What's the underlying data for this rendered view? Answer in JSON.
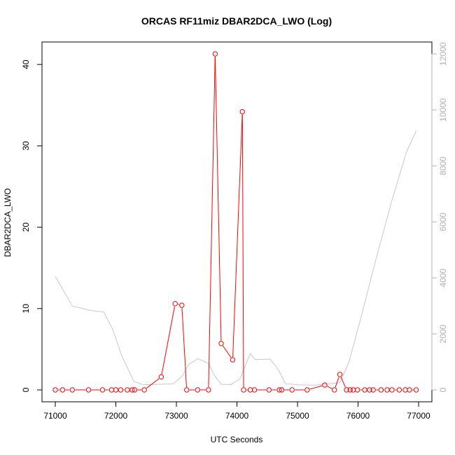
{
  "chart_data": {
    "type": "line",
    "title": "ORCAS RF11miz DBAR2DCA_LWO (Log)",
    "xlabel": "UTC Seconds",
    "ylabel": "DBAR2DCA_LWO",
    "xlim": [
      71000,
      77000
    ],
    "ylim": [
      0,
      41.3
    ],
    "y2lim": [
      0,
      12000
    ],
    "xticks": [
      71000,
      72000,
      73000,
      74000,
      75000,
      76000,
      77000
    ],
    "yticks": [
      0,
      10,
      20,
      30,
      40
    ],
    "y2ticks": [
      0,
      2000,
      4000,
      6000,
      8000,
      10000,
      12000
    ],
    "series": [
      {
        "color": "#ff0000",
        "points": [
          [
            71000,
            0
          ],
          [
            71120,
            0
          ],
          [
            71280,
            0
          ],
          [
            71550,
            0
          ],
          [
            71780,
            0
          ],
          [
            71930,
            0
          ],
          [
            72000,
            0
          ],
          [
            72080,
            0
          ],
          [
            72190,
            0
          ],
          [
            72270,
            0
          ],
          [
            72310,
            0
          ],
          [
            72470,
            0
          ],
          [
            72750,
            1.6
          ],
          [
            72980,
            10.6
          ],
          [
            73090,
            10.4
          ],
          [
            73170,
            0
          ],
          [
            73350,
            0
          ],
          [
            73530,
            0
          ],
          [
            73640,
            41.3
          ],
          [
            73740,
            5.7
          ],
          [
            73930,
            3.7
          ],
          [
            74090,
            34.2
          ],
          [
            74110,
            0
          ],
          [
            74220,
            0
          ],
          [
            74290,
            0
          ],
          [
            74530,
            0
          ],
          [
            74700,
            0
          ],
          [
            74740,
            0
          ],
          [
            74910,
            0
          ],
          [
            75160,
            0
          ],
          [
            75450,
            0.6
          ],
          [
            75610,
            0
          ],
          [
            75700,
            1.9
          ],
          [
            75810,
            0
          ],
          [
            75870,
            0
          ],
          [
            75920,
            0
          ],
          [
            75990,
            0
          ],
          [
            76110,
            0
          ],
          [
            76190,
            0
          ],
          [
            76250,
            0
          ],
          [
            76380,
            0
          ],
          [
            76480,
            0
          ],
          [
            76560,
            0
          ],
          [
            76680,
            0
          ],
          [
            76780,
            0
          ],
          [
            76850,
            0
          ],
          [
            76960,
            0
          ]
        ]
      },
      {
        "color": "#c8c8c8",
        "axis": "right",
        "points": [
          [
            71000,
            4050
          ],
          [
            71280,
            3000
          ],
          [
            71550,
            2850
          ],
          [
            71800,
            2780
          ],
          [
            71950,
            2150
          ],
          [
            72100,
            1200
          ],
          [
            72300,
            300
          ],
          [
            72450,
            180
          ],
          [
            72700,
            200
          ],
          [
            72950,
            220
          ],
          [
            73100,
            500
          ],
          [
            73200,
            900
          ],
          [
            73350,
            1120
          ],
          [
            73530,
            950
          ],
          [
            73640,
            480
          ],
          [
            73740,
            200
          ],
          [
            73900,
            190
          ],
          [
            74050,
            400
          ],
          [
            74220,
            1300
          ],
          [
            74300,
            1080
          ],
          [
            74550,
            1100
          ],
          [
            74690,
            700
          ],
          [
            74800,
            220
          ],
          [
            75000,
            180
          ],
          [
            75300,
            170
          ],
          [
            75450,
            200
          ],
          [
            75700,
            260
          ],
          [
            75850,
            1000
          ],
          [
            76050,
            2600
          ],
          [
            76300,
            4700
          ],
          [
            76550,
            6700
          ],
          [
            76800,
            8500
          ],
          [
            76960,
            9250
          ]
        ]
      }
    ]
  }
}
